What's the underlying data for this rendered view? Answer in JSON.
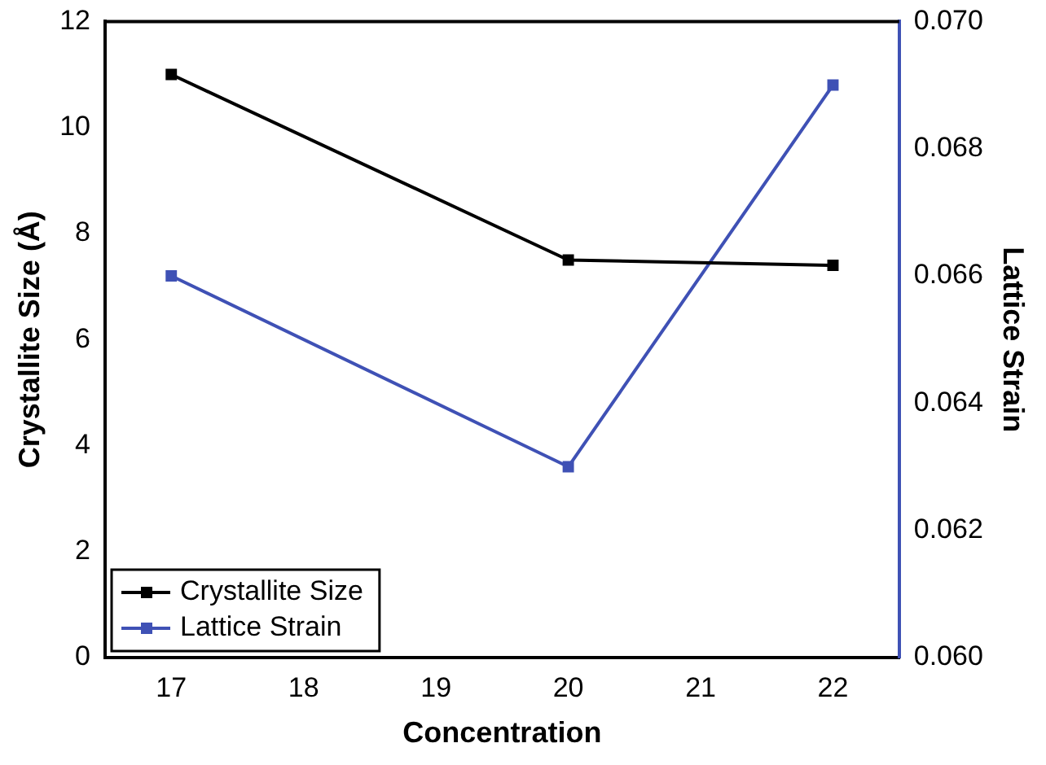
{
  "chart_data": {
    "type": "line",
    "xlabel": "Concentration",
    "ylabel": "Crystallite Size (Å)",
    "y2label": "Lattice Strain",
    "x": [
      17,
      20,
      22
    ],
    "xlim": [
      16.5,
      22.5
    ],
    "xticks": [
      17,
      18,
      19,
      20,
      21,
      22
    ],
    "ylim": [
      0,
      12
    ],
    "yticks": [
      0,
      2,
      4,
      6,
      8,
      10,
      12
    ],
    "y2lim": [
      0.06,
      0.07
    ],
    "y2ticks": [
      {
        "value": 0.06,
        "label": "0.060"
      },
      0.062,
      0.064,
      0.066,
      0.068,
      {
        "value": 0.07,
        "label": "0.070"
      }
    ],
    "series": [
      {
        "name": "Crystallite Size",
        "color": "#000000",
        "values": [
          11.0,
          7.5,
          7.4
        ]
      },
      {
        "name": "Lattice Strain",
        "color": "#3f51b5",
        "values": [
          0.066,
          0.063,
          0.069
        ],
        "axis": "y2"
      }
    ],
    "marker": "square",
    "legend": "bottom left",
    "grid": false
  }
}
